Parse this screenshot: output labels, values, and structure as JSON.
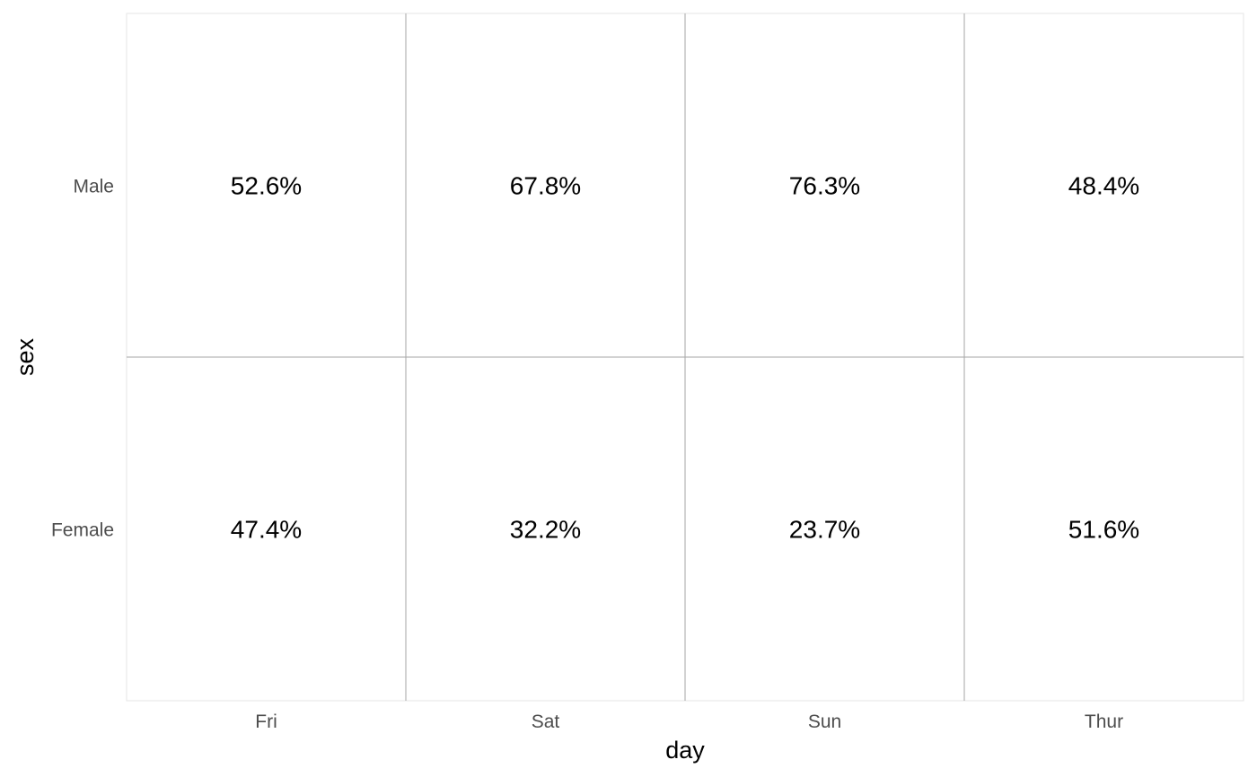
{
  "chart_data": {
    "type": "table",
    "xlabel": "day",
    "ylabel": "sex",
    "x_categories": [
      "Fri",
      "Sat",
      "Sun",
      "Thur"
    ],
    "y_categories": [
      "Male",
      "Female"
    ],
    "cells": [
      [
        "52.6%",
        "67.8%",
        "76.3%",
        "48.4%"
      ],
      [
        "47.4%",
        "32.2%",
        "23.7%",
        "51.6%"
      ]
    ],
    "values": [
      [
        52.6,
        67.8,
        76.3,
        48.4
      ],
      [
        47.4,
        32.2,
        23.7,
        51.6
      ]
    ],
    "grid": true,
    "legend": "none"
  }
}
